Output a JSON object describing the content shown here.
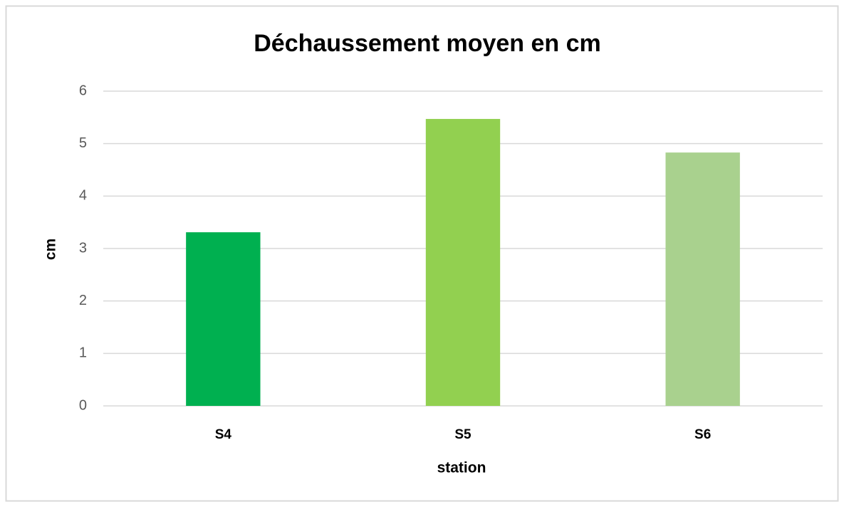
{
  "chart_data": {
    "type": "bar",
    "title": "Déchaussement moyen en cm",
    "x_label": "station",
    "y_label": "cm",
    "categories": [
      "S4",
      "S5",
      "S6"
    ],
    "values": [
      3.31,
      5.47,
      4.83
    ],
    "colors": [
      "#00b050",
      "#92d050",
      "#a9d18e"
    ],
    "ylim": [
      0,
      6
    ],
    "yticks": [
      0,
      1,
      2,
      3,
      4,
      5,
      6
    ],
    "grid": true
  }
}
